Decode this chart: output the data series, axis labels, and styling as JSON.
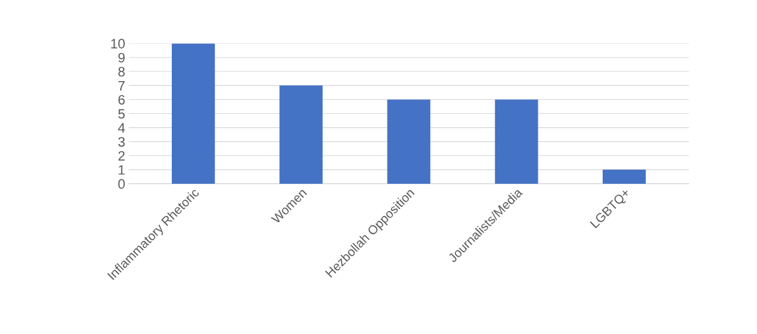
{
  "chart_data": {
    "type": "bar",
    "categories": [
      "Inflammatory Rhetoric",
      "Women",
      "Hezbollah Opposition",
      "Journalists/Media",
      "LGBTQ+"
    ],
    "values": [
      10,
      7,
      6,
      6,
      1
    ],
    "color": "#4472c4",
    "ylim": [
      0,
      10
    ],
    "yticks": [
      0,
      1,
      2,
      3,
      4,
      5,
      6,
      7,
      8,
      9,
      10
    ],
    "grid": "y"
  }
}
